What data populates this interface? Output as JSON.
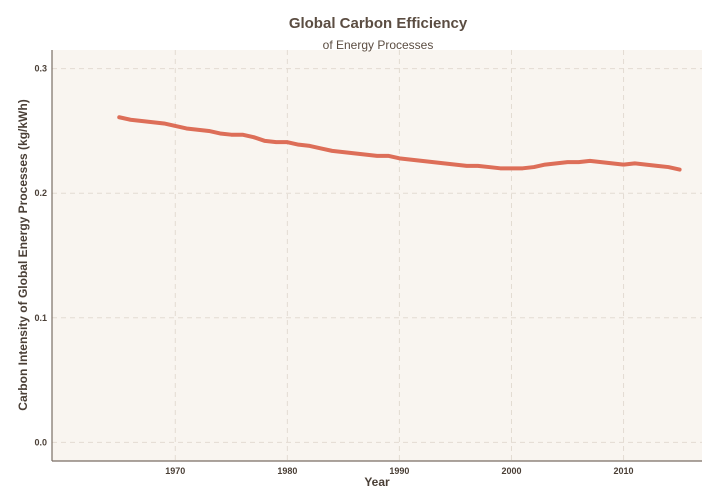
{
  "colors": {
    "plot_background": "#f9f5f0",
    "grid": "#e3dbd2",
    "axis": "#7a6e64",
    "line": "#dd6e58",
    "text": "#5b4d42"
  },
  "chart_data": {
    "type": "line",
    "title": "Global Carbon Efficiency",
    "subtitle": "of Energy Processes",
    "xlabel": "Year",
    "ylabel": "Carbon Intensity of Global Energy Processes (kg/kWh)",
    "xlim": [
      1959,
      2017
    ],
    "ylim": [
      -0.015,
      0.315
    ],
    "x_ticks": [
      1970,
      1980,
      1990,
      2000,
      2010
    ],
    "y_ticks": [
      0.0,
      0.1,
      0.2,
      0.3
    ],
    "x_tick_labels": [
      "1970",
      "1980",
      "1990",
      "2000",
      "2010"
    ],
    "y_tick_labels": [
      "0.0",
      "0.1",
      "0.2",
      "0.3"
    ],
    "grid": true,
    "grid_style": "dashed",
    "legend": "none",
    "series": [
      {
        "color": "#dd6e58",
        "x": [
          1965,
          1966,
          1967,
          1968,
          1969,
          1970,
          1971,
          1972,
          1973,
          1974,
          1975,
          1976,
          1977,
          1978,
          1979,
          1980,
          1981,
          1982,
          1983,
          1984,
          1985,
          1986,
          1987,
          1988,
          1989,
          1990,
          1991,
          1992,
          1993,
          1994,
          1995,
          1996,
          1997,
          1998,
          1999,
          2000,
          2001,
          2002,
          2003,
          2004,
          2005,
          2006,
          2007,
          2008,
          2009,
          2010,
          2011,
          2012,
          2013,
          2014,
          2015
        ],
        "y": [
          0.261,
          0.259,
          0.258,
          0.257,
          0.256,
          0.254,
          0.252,
          0.251,
          0.25,
          0.248,
          0.247,
          0.247,
          0.245,
          0.242,
          0.241,
          0.241,
          0.239,
          0.238,
          0.236,
          0.234,
          0.233,
          0.232,
          0.231,
          0.23,
          0.23,
          0.228,
          0.227,
          0.226,
          0.225,
          0.224,
          0.223,
          0.222,
          0.222,
          0.221,
          0.22,
          0.22,
          0.22,
          0.221,
          0.223,
          0.224,
          0.225,
          0.225,
          0.226,
          0.225,
          0.224,
          0.223,
          0.224,
          0.223,
          0.222,
          0.221,
          0.219
        ]
      }
    ]
  }
}
